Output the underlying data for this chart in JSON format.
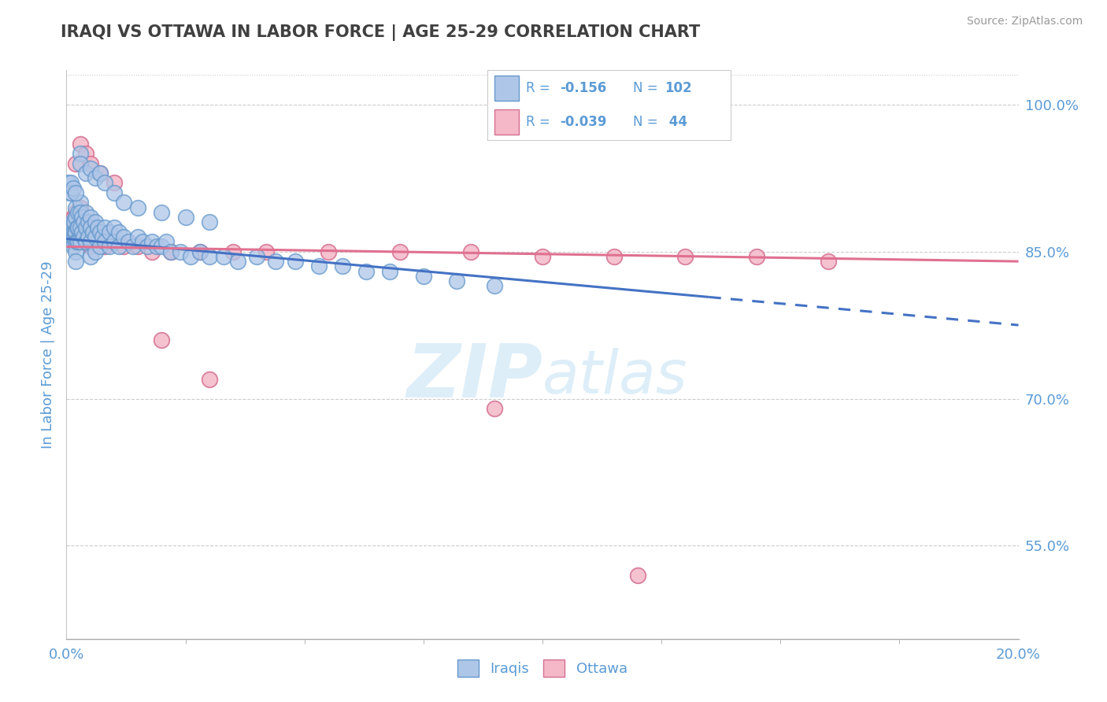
{
  "title": "IRAQI VS OTTAWA IN LABOR FORCE | AGE 25-29 CORRELATION CHART",
  "source_text": "Source: ZipAtlas.com",
  "ylabel": "In Labor Force | Age 25-29",
  "xlim": [
    0.0,
    0.2
  ],
  "ylim": [
    0.455,
    1.035
  ],
  "ytick_right_labels": [
    "55.0%",
    "70.0%",
    "85.0%",
    "100.0%"
  ],
  "ytick_right_values": [
    0.55,
    0.7,
    0.85,
    1.0
  ],
  "r_iraqis": -0.156,
  "n_iraqis": 102,
  "r_ottawa": -0.039,
  "n_ottawa": 44,
  "color_iraqis_fill": "#aec6e8",
  "color_iraqis_edge": "#6699cc",
  "color_ottawa_fill": "#f4b8c8",
  "color_ottawa_edge": "#d47090",
  "color_line_iraqis": "#4472c4",
  "color_line_ottawa": "#e07090",
  "watermark_color": "#ddeef8",
  "background_color": "#ffffff",
  "title_color": "#404040",
  "axis_label_color": "#5b9bd5",
  "legend_r_color": "#5b9bd5",
  "trend_iraqis_x0": 0.0,
  "trend_iraqis_y0": 0.863,
  "trend_iraqis_x1": 0.2,
  "trend_iraqis_y1": 0.775,
  "trend_iraqis_dash_start": 0.135,
  "trend_ottawa_x0": 0.0,
  "trend_ottawa_y0": 0.855,
  "trend_ottawa_x1": 0.2,
  "trend_ottawa_y1": 0.84,
  "iraqis_x": [
    0.0008,
    0.001,
    0.001,
    0.0012,
    0.0012,
    0.0014,
    0.0014,
    0.0015,
    0.0015,
    0.0016,
    0.0016,
    0.0018,
    0.002,
    0.002,
    0.002,
    0.002,
    0.002,
    0.002,
    0.0022,
    0.0022,
    0.0025,
    0.0025,
    0.0025,
    0.003,
    0.003,
    0.003,
    0.003,
    0.0032,
    0.0032,
    0.0035,
    0.0035,
    0.004,
    0.004,
    0.004,
    0.0045,
    0.0045,
    0.005,
    0.005,
    0.005,
    0.005,
    0.0055,
    0.006,
    0.006,
    0.006,
    0.0065,
    0.007,
    0.007,
    0.0075,
    0.008,
    0.008,
    0.009,
    0.009,
    0.01,
    0.01,
    0.011,
    0.011,
    0.012,
    0.013,
    0.014,
    0.015,
    0.016,
    0.017,
    0.018,
    0.019,
    0.02,
    0.021,
    0.022,
    0.024,
    0.026,
    0.028,
    0.03,
    0.033,
    0.036,
    0.04,
    0.044,
    0.048,
    0.053,
    0.058,
    0.063,
    0.068,
    0.075,
    0.082,
    0.09,
    0.0005,
    0.0007,
    0.001,
    0.001,
    0.0015,
    0.002,
    0.003,
    0.003,
    0.004,
    0.005,
    0.006,
    0.007,
    0.008,
    0.01,
    0.012,
    0.015,
    0.02,
    0.025,
    0.03
  ],
  "iraqis_y": [
    0.875,
    0.86,
    0.87,
    0.88,
    0.865,
    0.875,
    0.86,
    0.87,
    0.855,
    0.88,
    0.865,
    0.87,
    0.895,
    0.885,
    0.87,
    0.86,
    0.85,
    0.84,
    0.875,
    0.86,
    0.89,
    0.875,
    0.86,
    0.9,
    0.89,
    0.875,
    0.86,
    0.885,
    0.87,
    0.88,
    0.865,
    0.89,
    0.875,
    0.86,
    0.88,
    0.865,
    0.885,
    0.875,
    0.86,
    0.845,
    0.87,
    0.88,
    0.865,
    0.85,
    0.875,
    0.87,
    0.855,
    0.865,
    0.875,
    0.86,
    0.87,
    0.855,
    0.875,
    0.86,
    0.87,
    0.855,
    0.865,
    0.86,
    0.855,
    0.865,
    0.86,
    0.855,
    0.86,
    0.855,
    0.855,
    0.86,
    0.85,
    0.85,
    0.845,
    0.85,
    0.845,
    0.845,
    0.84,
    0.845,
    0.84,
    0.84,
    0.835,
    0.835,
    0.83,
    0.83,
    0.825,
    0.82,
    0.815,
    0.92,
    0.91,
    0.92,
    0.91,
    0.915,
    0.91,
    0.95,
    0.94,
    0.93,
    0.935,
    0.925,
    0.93,
    0.92,
    0.91,
    0.9,
    0.895,
    0.89,
    0.885,
    0.88
  ],
  "ottawa_x": [
    0.0008,
    0.001,
    0.0012,
    0.0015,
    0.002,
    0.002,
    0.002,
    0.0025,
    0.003,
    0.003,
    0.003,
    0.004,
    0.004,
    0.005,
    0.005,
    0.006,
    0.007,
    0.008,
    0.01,
    0.012,
    0.015,
    0.018,
    0.022,
    0.028,
    0.035,
    0.042,
    0.055,
    0.07,
    0.085,
    0.1,
    0.115,
    0.13,
    0.145,
    0.16,
    0.002,
    0.003,
    0.004,
    0.005,
    0.007,
    0.01,
    0.02,
    0.03,
    0.09,
    0.12
  ],
  "ottawa_y": [
    0.875,
    0.88,
    0.87,
    0.885,
    0.89,
    0.875,
    0.86,
    0.87,
    0.895,
    0.88,
    0.865,
    0.875,
    0.86,
    0.87,
    0.855,
    0.865,
    0.86,
    0.855,
    0.86,
    0.855,
    0.855,
    0.85,
    0.85,
    0.85,
    0.85,
    0.85,
    0.85,
    0.85,
    0.85,
    0.845,
    0.845,
    0.845,
    0.845,
    0.84,
    0.94,
    0.96,
    0.95,
    0.94,
    0.93,
    0.92,
    0.76,
    0.72,
    0.69,
    0.52
  ]
}
